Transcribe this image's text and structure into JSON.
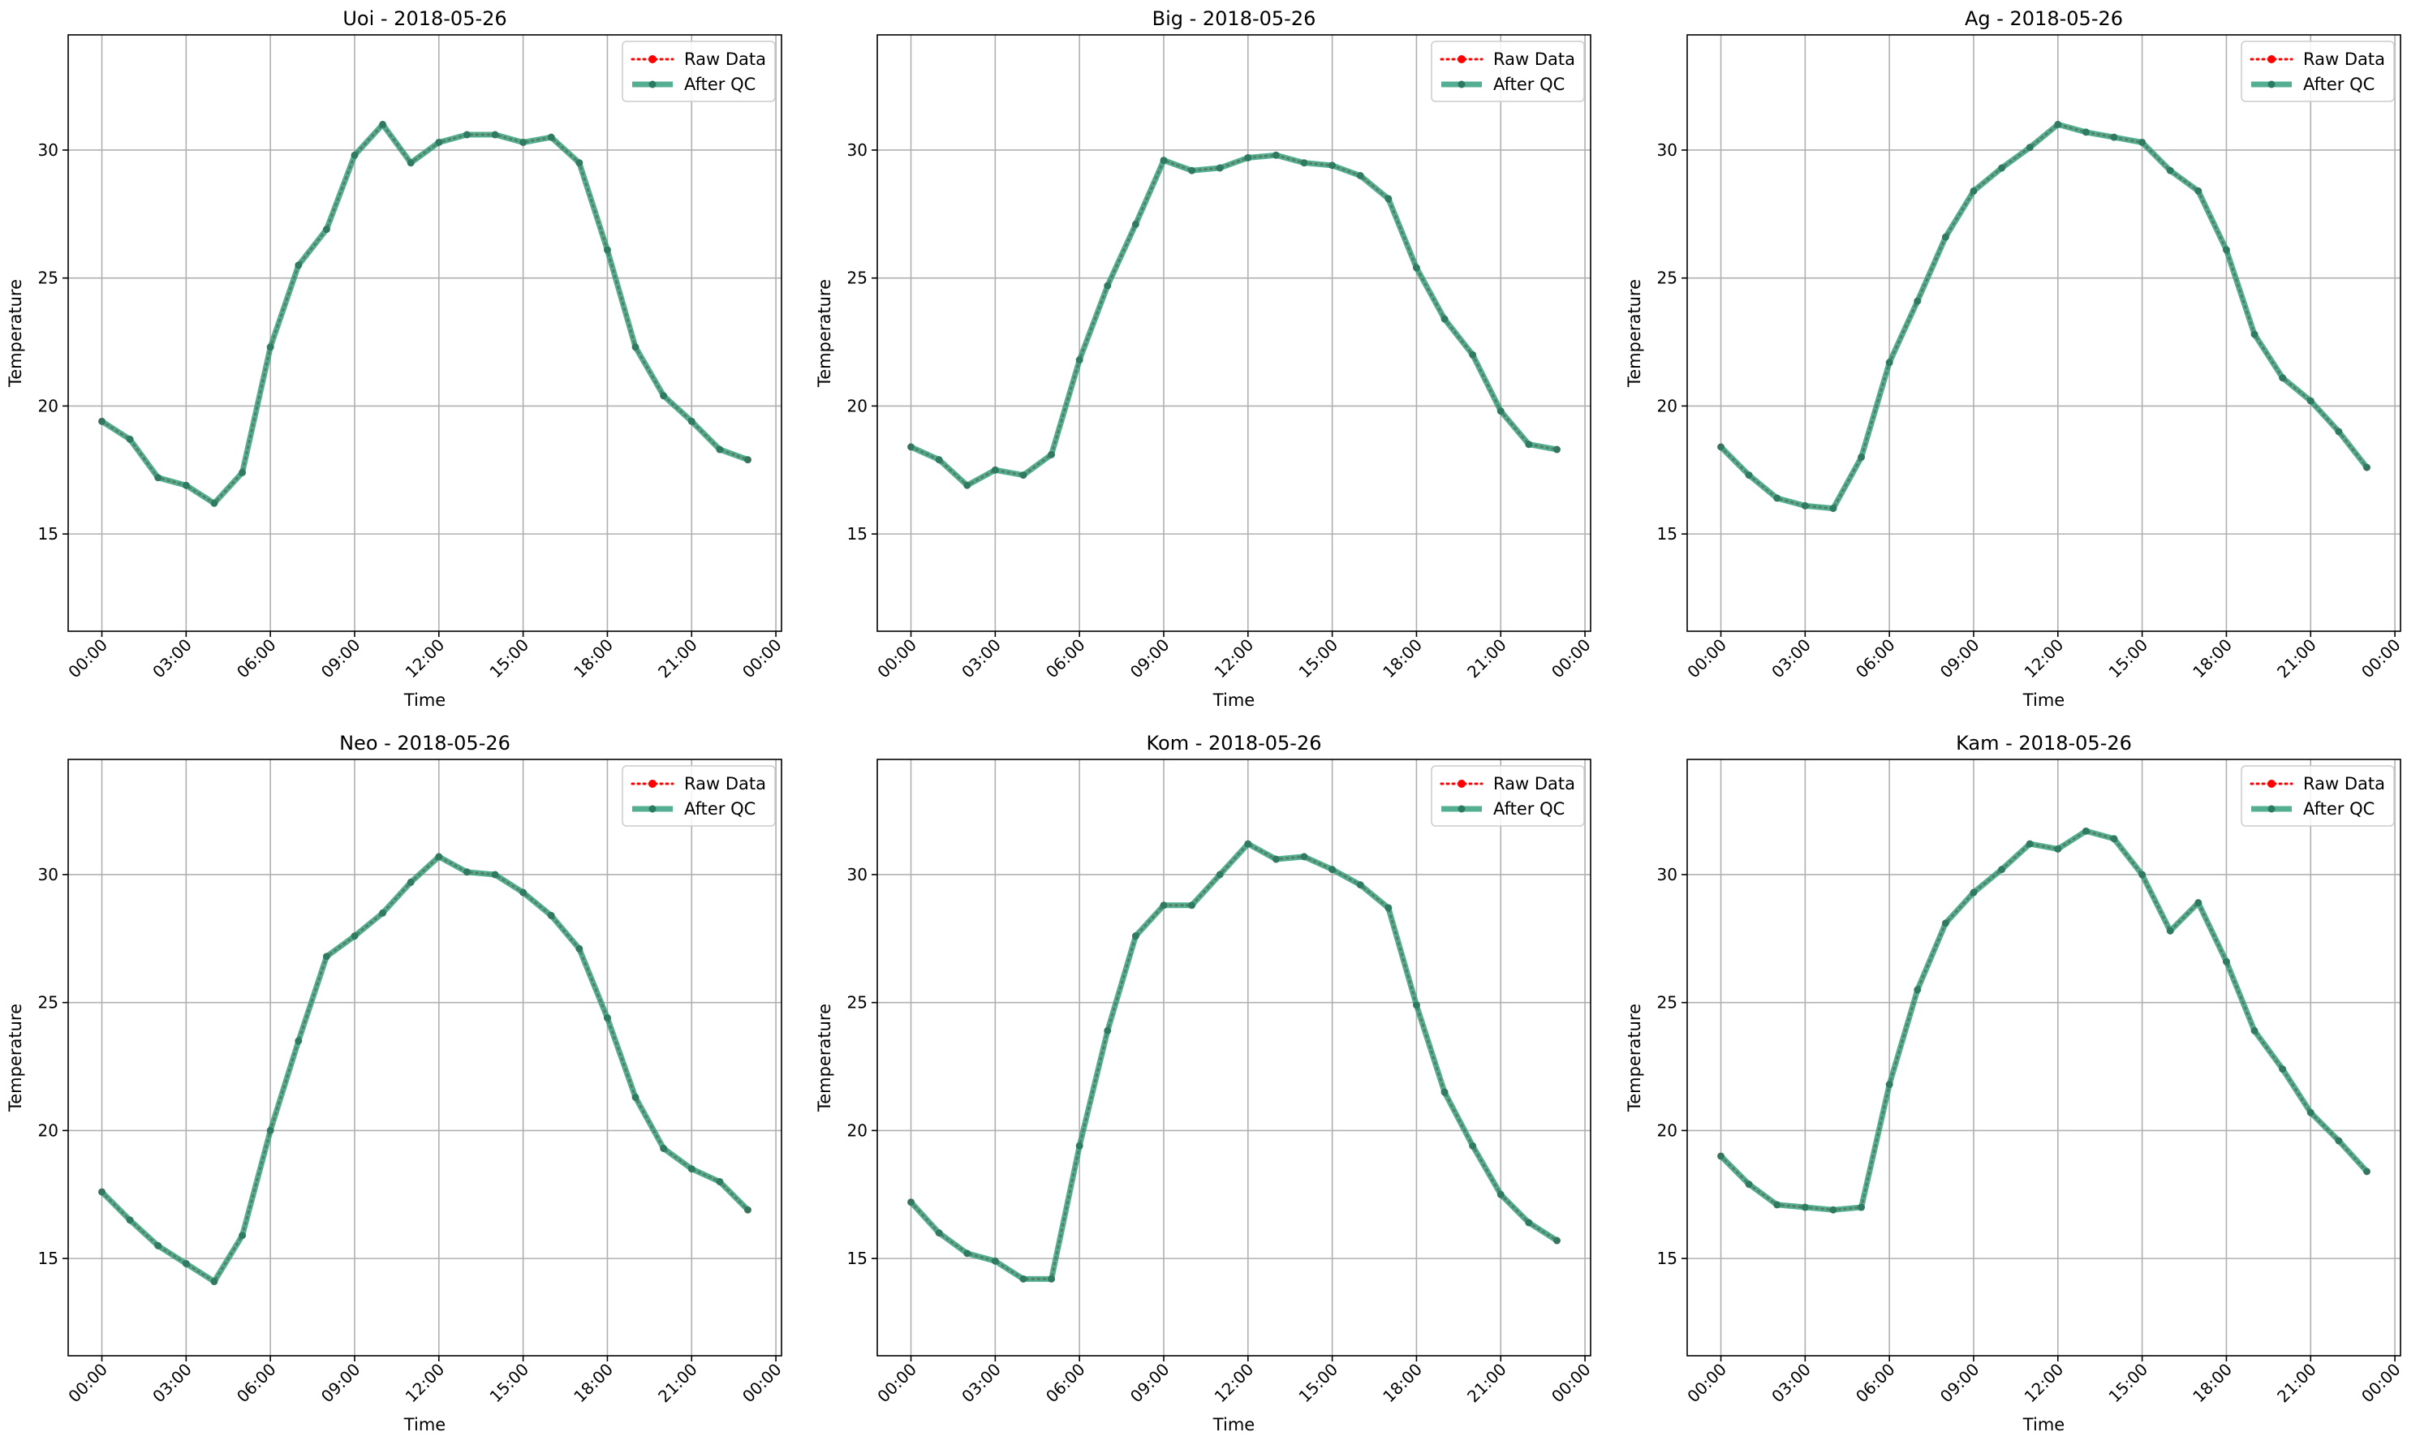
{
  "style": {
    "raw_color": "#ff0000",
    "qc_color": "#2e9e7a",
    "grid_color": "#b0b0b0",
    "axes_color": "#000000"
  },
  "chart_data": [
    {
      "type": "line",
      "title": "Uoi - 2018-05-26",
      "xlabel": "Time",
      "ylabel": "Temperature",
      "x_tick_labels": [
        "00:00",
        "03:00",
        "06:00",
        "09:00",
        "12:00",
        "15:00",
        "18:00",
        "21:00",
        "00:00"
      ],
      "y_ticks": [
        15,
        20,
        25,
        30
      ],
      "ylim": [
        11.2,
        34.5
      ],
      "xlim_hours": [
        -1.2,
        24.2
      ],
      "grid": true,
      "legend_position": "top-right",
      "x_hours": [
        0,
        1,
        2,
        3,
        4,
        5,
        6,
        7,
        8,
        9,
        10,
        11,
        12,
        13,
        14,
        15,
        16,
        17,
        18,
        19,
        20,
        21,
        22,
        23
      ],
      "series": [
        {
          "name": "Raw Data",
          "values": [
            19.4,
            18.7,
            17.2,
            16.9,
            16.2,
            17.4,
            22.3,
            25.5,
            26.9,
            29.8,
            31.0,
            29.5,
            30.3,
            30.6,
            30.6,
            30.3,
            30.5,
            29.5,
            26.1,
            22.3,
            20.4,
            19.4,
            18.3,
            17.9
          ]
        },
        {
          "name": "After QC",
          "values": [
            19.4,
            18.7,
            17.2,
            16.9,
            16.2,
            17.4,
            22.3,
            25.5,
            26.9,
            29.8,
            31.0,
            29.5,
            30.3,
            30.6,
            30.6,
            30.3,
            30.5,
            29.5,
            26.1,
            22.3,
            20.4,
            19.4,
            18.3,
            17.9
          ]
        }
      ]
    },
    {
      "type": "line",
      "title": "Big - 2018-05-26",
      "xlabel": "Time",
      "ylabel": "Temperature",
      "x_tick_labels": [
        "00:00",
        "03:00",
        "06:00",
        "09:00",
        "12:00",
        "15:00",
        "18:00",
        "21:00",
        "00:00"
      ],
      "y_ticks": [
        15,
        20,
        25,
        30
      ],
      "ylim": [
        11.2,
        34.5
      ],
      "xlim_hours": [
        -1.2,
        24.2
      ],
      "grid": true,
      "legend_position": "top-right",
      "x_hours": [
        0,
        1,
        2,
        3,
        4,
        5,
        6,
        7,
        8,
        9,
        10,
        11,
        12,
        13,
        14,
        15,
        16,
        17,
        18,
        19,
        20,
        21,
        22,
        23
      ],
      "series": [
        {
          "name": "Raw Data",
          "values": [
            18.4,
            17.9,
            16.9,
            17.5,
            17.3,
            18.1,
            21.8,
            24.7,
            27.1,
            29.6,
            29.2,
            29.3,
            29.7,
            29.8,
            29.5,
            29.4,
            29.0,
            28.1,
            25.4,
            23.4,
            22.0,
            19.8,
            18.5,
            18.3
          ]
        },
        {
          "name": "After QC",
          "values": [
            18.4,
            17.9,
            16.9,
            17.5,
            17.3,
            18.1,
            21.8,
            24.7,
            27.1,
            29.6,
            29.2,
            29.3,
            29.7,
            29.8,
            29.5,
            29.4,
            29.0,
            28.1,
            25.4,
            23.4,
            22.0,
            19.8,
            18.5,
            18.3
          ]
        }
      ]
    },
    {
      "type": "line",
      "title": "Ag - 2018-05-26",
      "xlabel": "Time",
      "ylabel": "Temperature",
      "x_tick_labels": [
        "00:00",
        "03:00",
        "06:00",
        "09:00",
        "12:00",
        "15:00",
        "18:00",
        "21:00",
        "00:00"
      ],
      "y_ticks": [
        15,
        20,
        25,
        30
      ],
      "ylim": [
        11.2,
        34.5
      ],
      "xlim_hours": [
        -1.2,
        24.2
      ],
      "grid": true,
      "legend_position": "top-right",
      "x_hours": [
        0,
        1,
        2,
        3,
        4,
        5,
        6,
        7,
        8,
        9,
        10,
        11,
        12,
        13,
        14,
        15,
        16,
        17,
        18,
        19,
        20,
        21,
        22,
        23
      ],
      "series": [
        {
          "name": "Raw Data",
          "values": [
            18.4,
            17.3,
            16.4,
            16.1,
            16.0,
            18.0,
            21.7,
            24.1,
            26.6,
            28.4,
            29.3,
            30.1,
            31.0,
            30.7,
            30.5,
            30.3,
            29.2,
            28.4,
            26.1,
            22.8,
            21.1,
            20.2,
            19.0,
            17.6
          ]
        },
        {
          "name": "After QC",
          "values": [
            18.4,
            17.3,
            16.4,
            16.1,
            16.0,
            18.0,
            21.7,
            24.1,
            26.6,
            28.4,
            29.3,
            30.1,
            31.0,
            30.7,
            30.5,
            30.3,
            29.2,
            28.4,
            26.1,
            22.8,
            21.1,
            20.2,
            19.0,
            17.6
          ]
        }
      ]
    },
    {
      "type": "line",
      "title": "Neo - 2018-05-26",
      "xlabel": "Time",
      "ylabel": "Temperature",
      "x_tick_labels": [
        "00:00",
        "03:00",
        "06:00",
        "09:00",
        "12:00",
        "15:00",
        "18:00",
        "21:00",
        "00:00"
      ],
      "y_ticks": [
        15,
        20,
        25,
        30
      ],
      "ylim": [
        11.2,
        34.5
      ],
      "xlim_hours": [
        -1.2,
        24.2
      ],
      "grid": true,
      "legend_position": "top-right",
      "x_hours": [
        0,
        1,
        2,
        3,
        4,
        5,
        6,
        7,
        8,
        9,
        10,
        11,
        12,
        13,
        14,
        15,
        16,
        17,
        18,
        19,
        20,
        21,
        22,
        23
      ],
      "series": [
        {
          "name": "Raw Data",
          "values": [
            17.6,
            16.5,
            15.5,
            14.8,
            14.1,
            15.9,
            20.0,
            23.5,
            26.8,
            27.6,
            28.5,
            29.7,
            30.7,
            30.1,
            30.0,
            29.3,
            28.4,
            27.1,
            24.4,
            21.3,
            19.3,
            18.5,
            18.0,
            16.9
          ]
        },
        {
          "name": "After QC",
          "values": [
            17.6,
            16.5,
            15.5,
            14.8,
            14.1,
            15.9,
            20.0,
            23.5,
            26.8,
            27.6,
            28.5,
            29.7,
            30.7,
            30.1,
            30.0,
            29.3,
            28.4,
            27.1,
            24.4,
            21.3,
            19.3,
            18.5,
            18.0,
            16.9
          ]
        }
      ]
    },
    {
      "type": "line",
      "title": "Kom - 2018-05-26",
      "xlabel": "Time",
      "ylabel": "Temperature",
      "x_tick_labels": [
        "00:00",
        "03:00",
        "06:00",
        "09:00",
        "12:00",
        "15:00",
        "18:00",
        "21:00",
        "00:00"
      ],
      "y_ticks": [
        15,
        20,
        25,
        30
      ],
      "ylim": [
        11.2,
        34.5
      ],
      "xlim_hours": [
        -1.2,
        24.2
      ],
      "grid": true,
      "legend_position": "top-right",
      "x_hours": [
        0,
        1,
        2,
        3,
        4,
        5,
        6,
        7,
        8,
        9,
        10,
        11,
        12,
        13,
        14,
        15,
        16,
        17,
        18,
        19,
        20,
        21,
        22,
        23
      ],
      "series": [
        {
          "name": "Raw Data",
          "values": [
            17.2,
            16.0,
            15.2,
            14.9,
            14.2,
            14.2,
            19.4,
            23.9,
            27.6,
            28.8,
            28.8,
            30.0,
            31.2,
            30.6,
            30.7,
            30.2,
            29.6,
            28.7,
            24.9,
            21.5,
            19.4,
            17.5,
            16.4,
            15.7
          ]
        },
        {
          "name": "After QC",
          "values": [
            17.2,
            16.0,
            15.2,
            14.9,
            14.2,
            14.2,
            19.4,
            23.9,
            27.6,
            28.8,
            28.8,
            30.0,
            31.2,
            30.6,
            30.7,
            30.2,
            29.6,
            28.7,
            24.9,
            21.5,
            19.4,
            17.5,
            16.4,
            15.7
          ]
        }
      ]
    },
    {
      "type": "line",
      "title": "Kam - 2018-05-26",
      "xlabel": "Time",
      "ylabel": "Temperature",
      "x_tick_labels": [
        "00:00",
        "03:00",
        "06:00",
        "09:00",
        "12:00",
        "15:00",
        "18:00",
        "21:00",
        "00:00"
      ],
      "y_ticks": [
        15,
        20,
        25,
        30
      ],
      "ylim": [
        11.2,
        34.5
      ],
      "xlim_hours": [
        -1.2,
        24.2
      ],
      "grid": true,
      "legend_position": "top-right",
      "x_hours": [
        0,
        1,
        2,
        3,
        4,
        5,
        6,
        7,
        8,
        9,
        10,
        11,
        12,
        13,
        14,
        15,
        16,
        17,
        18,
        19,
        20,
        21,
        22,
        23
      ],
      "series": [
        {
          "name": "Raw Data",
          "values": [
            19.0,
            17.9,
            17.1,
            17.0,
            16.9,
            17.0,
            21.8,
            25.5,
            28.1,
            29.3,
            30.2,
            31.2,
            31.0,
            31.7,
            31.4,
            30.0,
            27.8,
            28.9,
            26.6,
            23.9,
            22.4,
            20.7,
            19.6,
            18.4
          ]
        },
        {
          "name": "After QC",
          "values": [
            19.0,
            17.9,
            17.1,
            17.0,
            16.9,
            17.0,
            21.8,
            25.5,
            28.1,
            29.3,
            30.2,
            31.2,
            31.0,
            31.7,
            31.4,
            30.0,
            27.8,
            28.9,
            26.6,
            23.9,
            22.4,
            20.7,
            19.6,
            18.4
          ]
        }
      ]
    }
  ]
}
